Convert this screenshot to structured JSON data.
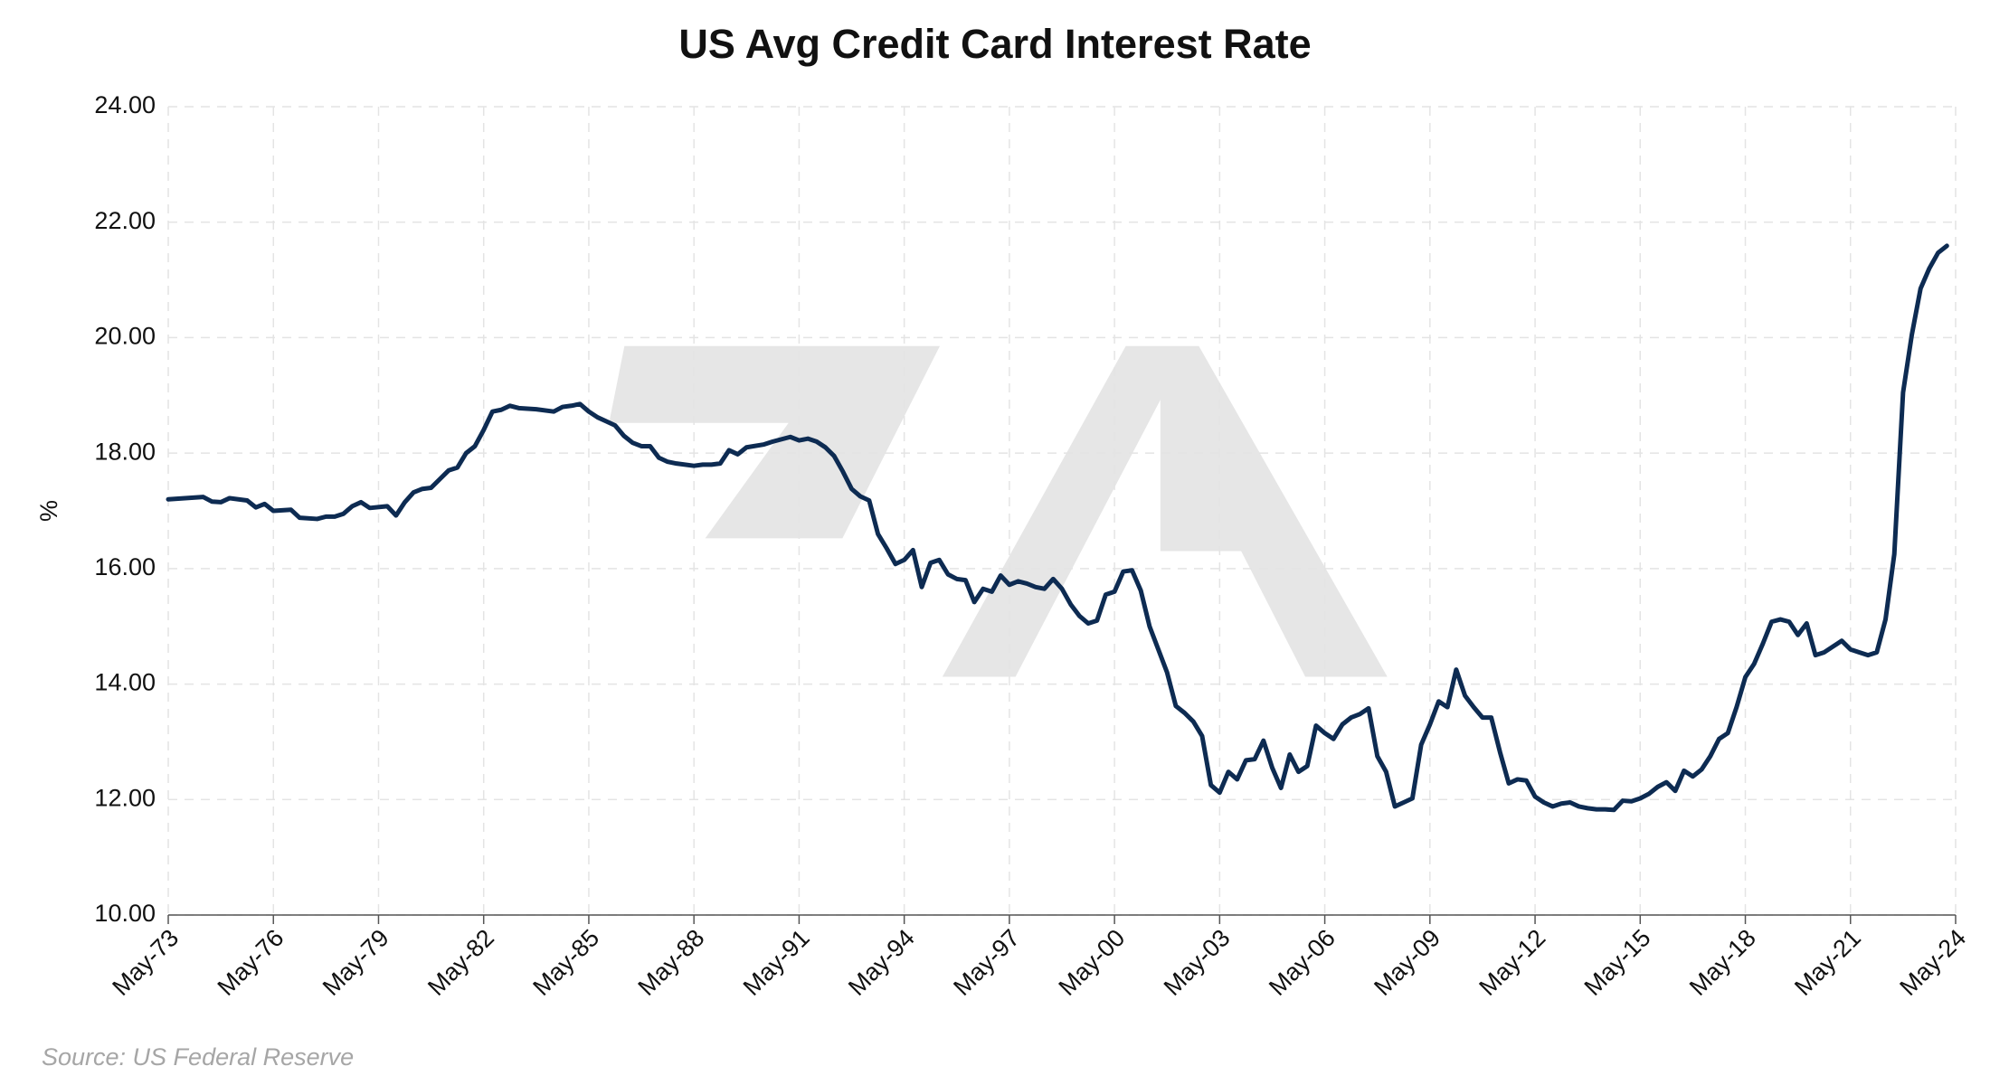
{
  "chart_data": {
    "type": "line",
    "title": "US Avg Credit Card Interest Rate",
    "y_label": "%",
    "source": "Source: US Federal Reserve",
    "x": [
      "1973-05",
      "1974-05",
      "1974-08",
      "1974-11",
      "1975-02",
      "1975-08",
      "1975-11",
      "1976-02",
      "1976-05",
      "1976-11",
      "1977-02",
      "1977-08",
      "1977-11",
      "1978-02",
      "1978-05",
      "1978-08",
      "1978-11",
      "1979-02",
      "1979-08",
      "1979-11",
      "1980-02",
      "1980-05",
      "1980-08",
      "1980-11",
      "1981-02",
      "1981-05",
      "1981-08",
      "1981-11",
      "1982-02",
      "1982-05",
      "1982-08",
      "1982-11",
      "1983-02",
      "1983-05",
      "1983-11",
      "1984-05",
      "1984-08",
      "1984-11",
      "1985-02",
      "1985-05",
      "1985-08",
      "1985-11",
      "1986-02",
      "1986-05",
      "1986-08",
      "1986-11",
      "1987-02",
      "1987-05",
      "1987-08",
      "1987-11",
      "1988-05",
      "1988-08",
      "1988-11",
      "1989-02",
      "1989-05",
      "1989-08",
      "1989-11",
      "1990-05",
      "1990-08",
      "1991-02",
      "1991-05",
      "1991-08",
      "1991-11",
      "1992-02",
      "1992-05",
      "1992-08",
      "1992-11",
      "1993-02",
      "1993-05",
      "1993-08",
      "1993-11",
      "1994-02",
      "1994-05",
      "1994-08",
      "1994-11",
      "1995-02",
      "1995-05",
      "1995-08",
      "1995-11",
      "1996-02",
      "1996-05",
      "1996-08",
      "1996-11",
      "1997-02",
      "1997-05",
      "1997-08",
      "1997-11",
      "1998-02",
      "1998-05",
      "1998-08",
      "1998-11",
      "1999-02",
      "1999-05",
      "1999-08",
      "1999-11",
      "2000-02",
      "2000-05",
      "2000-08",
      "2000-11",
      "2001-02",
      "2001-05",
      "2001-08",
      "2001-11",
      "2002-02",
      "2002-05",
      "2002-08",
      "2002-11",
      "2003-02",
      "2003-05",
      "2003-08",
      "2003-11",
      "2004-02",
      "2004-05",
      "2004-08",
      "2004-11",
      "2005-02",
      "2005-05",
      "2005-08",
      "2005-11",
      "2006-02",
      "2006-05",
      "2006-08",
      "2006-11",
      "2007-02",
      "2007-05",
      "2007-08",
      "2007-11",
      "2008-02",
      "2008-05",
      "2008-08",
      "2008-11",
      "2009-02",
      "2009-05",
      "2009-08",
      "2009-11",
      "2010-02",
      "2010-05",
      "2010-08",
      "2010-11",
      "2011-02",
      "2011-05",
      "2011-08",
      "2011-11",
      "2012-02",
      "2012-05",
      "2012-08",
      "2012-11",
      "2013-02",
      "2013-05",
      "2013-08",
      "2013-11",
      "2014-02",
      "2014-05",
      "2014-08",
      "2014-11",
      "2015-02",
      "2015-05",
      "2015-08",
      "2015-11",
      "2016-02",
      "2016-05",
      "2016-08",
      "2016-11",
      "2017-02",
      "2017-05",
      "2017-08",
      "2017-11",
      "2018-02",
      "2018-05",
      "2018-08",
      "2018-11",
      "2019-02",
      "2019-05",
      "2019-08",
      "2019-11",
      "2020-02",
      "2020-05",
      "2020-08",
      "2020-11",
      "2021-02",
      "2021-05",
      "2021-08",
      "2021-11",
      "2022-02",
      "2022-05",
      "2022-08",
      "2022-11",
      "2023-02",
      "2023-05",
      "2023-08",
      "2023-11",
      "2024-02"
    ],
    "values": [
      17.2,
      17.24,
      17.16,
      17.15,
      17.22,
      17.18,
      17.06,
      17.12,
      17.0,
      17.02,
      16.88,
      16.86,
      16.9,
      16.9,
      16.95,
      17.08,
      17.15,
      17.05,
      17.08,
      16.92,
      17.15,
      17.32,
      17.38,
      17.4,
      17.55,
      17.7,
      17.75,
      18.0,
      18.12,
      18.4,
      18.72,
      18.75,
      18.82,
      18.78,
      18.76,
      18.72,
      18.8,
      18.82,
      18.85,
      18.72,
      18.62,
      18.55,
      18.48,
      18.3,
      18.18,
      18.12,
      18.12,
      17.92,
      17.85,
      17.82,
      17.78,
      17.8,
      17.8,
      17.82,
      18.05,
      17.98,
      18.1,
      18.15,
      18.2,
      18.28,
      18.22,
      18.25,
      18.2,
      18.1,
      17.95,
      17.68,
      17.38,
      17.25,
      17.18,
      16.6,
      16.35,
      16.08,
      16.15,
      16.32,
      15.68,
      16.1,
      16.15,
      15.9,
      15.82,
      15.8,
      15.42,
      15.65,
      15.6,
      15.88,
      15.72,
      15.78,
      15.74,
      15.68,
      15.65,
      15.82,
      15.65,
      15.38,
      15.18,
      15.05,
      15.1,
      15.55,
      15.6,
      15.95,
      15.97,
      15.62,
      15.0,
      14.6,
      14.2,
      13.62,
      13.5,
      13.35,
      13.1,
      12.25,
      12.12,
      12.48,
      12.35,
      12.68,
      12.7,
      13.02,
      12.55,
      12.2,
      12.78,
      12.48,
      12.58,
      13.28,
      13.15,
      13.05,
      13.3,
      13.42,
      13.48,
      13.58,
      12.75,
      12.48,
      11.88,
      11.95,
      12.02,
      12.95,
      13.3,
      13.7,
      13.6,
      14.25,
      13.8,
      13.6,
      13.42,
      13.42,
      12.82,
      12.28,
      12.35,
      12.33,
      12.05,
      11.95,
      11.88,
      11.93,
      11.95,
      11.88,
      11.85,
      11.83,
      11.83,
      11.82,
      11.98,
      11.97,
      12.02,
      12.1,
      12.22,
      12.3,
      12.15,
      12.5,
      12.4,
      12.52,
      12.75,
      13.05,
      13.15,
      13.6,
      14.12,
      14.35,
      14.7,
      15.08,
      15.12,
      15.08,
      14.85,
      15.05,
      14.5,
      14.55,
      14.65,
      14.75,
      14.6,
      14.55,
      14.5,
      14.55,
      15.12,
      16.25,
      19.05,
      20.05,
      20.85,
      21.2,
      21.47,
      21.59
    ],
    "color": "#0d2b52",
    "xlim": [
      "1973-05",
      "2024-05"
    ],
    "xticks": [
      {
        "value": "1973-05",
        "label": "May-73"
      },
      {
        "value": "1976-05",
        "label": "May-76"
      },
      {
        "value": "1979-05",
        "label": "May-79"
      },
      {
        "value": "1982-05",
        "label": "May-82"
      },
      {
        "value": "1985-05",
        "label": "May-85"
      },
      {
        "value": "1988-05",
        "label": "May-88"
      },
      {
        "value": "1991-05",
        "label": "May-91"
      },
      {
        "value": "1994-05",
        "label": "May-94"
      },
      {
        "value": "1997-05",
        "label": "May-97"
      },
      {
        "value": "2000-05",
        "label": "May-00"
      },
      {
        "value": "2003-05",
        "label": "May-03"
      },
      {
        "value": "2006-05",
        "label": "May-06"
      },
      {
        "value": "2009-05",
        "label": "May-09"
      },
      {
        "value": "2012-05",
        "label": "May-12"
      },
      {
        "value": "2015-05",
        "label": "May-15"
      },
      {
        "value": "2018-05",
        "label": "May-18"
      },
      {
        "value": "2021-05",
        "label": "May-21"
      },
      {
        "value": "2024-05",
        "label": "May-24"
      }
    ],
    "ylim": [
      10,
      24
    ],
    "yticks": [
      {
        "value": 10,
        "label": "10.00"
      },
      {
        "value": 12,
        "label": "12.00"
      },
      {
        "value": 14,
        "label": "14.00"
      },
      {
        "value": 16,
        "label": "16.00"
      },
      {
        "value": 18,
        "label": "18.00"
      },
      {
        "value": 20,
        "label": "20.00"
      },
      {
        "value": 22,
        "label": "22.00"
      },
      {
        "value": 24,
        "label": "24.00"
      }
    ],
    "grid": true
  }
}
